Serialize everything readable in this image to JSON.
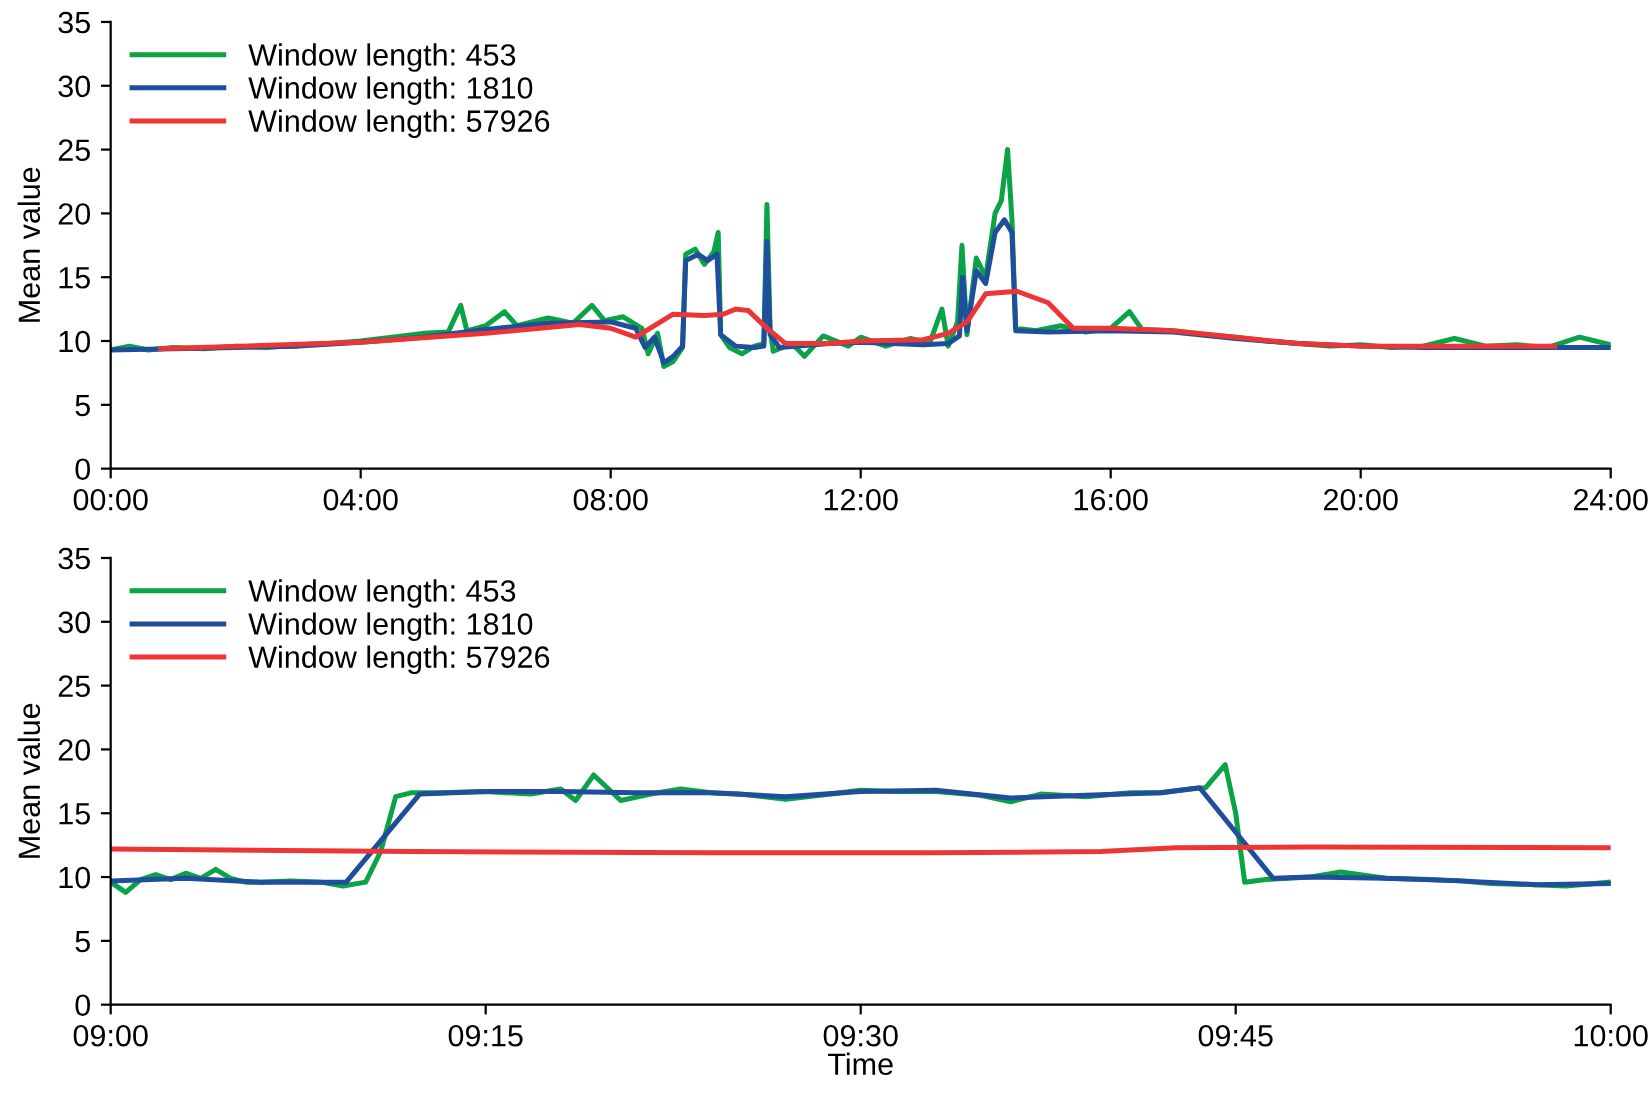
{
  "chart_data": [
    {
      "type": "line",
      "ylabel": "Mean value",
      "xlim": [
        0,
        24
      ],
      "ylim": [
        0,
        35
      ],
      "yticks": [
        0,
        5,
        10,
        15,
        20,
        25,
        30,
        35
      ],
      "xticks": [
        {
          "value": 0,
          "label": "00:00"
        },
        {
          "value": 4,
          "label": "04:00"
        },
        {
          "value": 8,
          "label": "08:00"
        },
        {
          "value": 12,
          "label": "12:00"
        },
        {
          "value": 16,
          "label": "16:00"
        },
        {
          "value": 20,
          "label": "20:00"
        },
        {
          "value": 24,
          "label": "24:00"
        }
      ],
      "legend": "top left",
      "grid": false,
      "series": [
        {
          "name": "Window length: 453",
          "color": "#0aa345",
          "x": [
            0,
            0.3,
            0.6,
            1.0,
            1.5,
            2,
            2.5,
            3,
            3.5,
            4,
            4.5,
            5,
            5.4,
            5.6,
            5.7,
            6,
            6.3,
            6.5,
            7,
            7.4,
            7.7,
            7.9,
            8.2,
            8.5,
            8.6,
            8.75,
            8.85,
            9.0,
            9.15,
            9.2,
            9.35,
            9.5,
            9.65,
            9.72,
            9.76,
            9.9,
            10.1,
            10.3,
            10.45,
            10.5,
            10.55,
            10.6,
            10.9,
            11.1,
            11.4,
            11.8,
            12,
            12.4,
            12.8,
            13.1,
            13.3,
            13.4,
            13.55,
            13.62,
            13.7,
            13.85,
            14.0,
            14.15,
            14.25,
            14.35,
            14.42,
            14.48,
            14.8,
            15.2,
            15.6,
            16,
            16.3,
            16.5,
            17,
            17.5,
            18,
            18.5,
            19,
            19.5,
            20,
            20.5,
            21,
            21.5,
            22,
            22.5,
            23,
            23.5,
            24
          ],
          "values": [
            9.3,
            9.6,
            9.3,
            9.5,
            9.4,
            9.6,
            9.5,
            9.7,
            9.8,
            10,
            10.3,
            10.6,
            10.7,
            12.8,
            10.8,
            11.2,
            12.3,
            11.2,
            11.8,
            11.4,
            12.8,
            11.6,
            11.9,
            11.0,
            9.0,
            10.6,
            8.0,
            8.4,
            9.5,
            16.8,
            17.2,
            16.0,
            17.0,
            18.5,
            10.5,
            9.5,
            9.0,
            9.6,
            9.8,
            20.7,
            11,
            9.2,
            9.8,
            8.8,
            10.4,
            9.6,
            10.3,
            9.6,
            10.2,
            9.8,
            12.5,
            9.6,
            11.5,
            17.5,
            10.5,
            16.5,
            15.0,
            20.0,
            21.0,
            25.0,
            19.5,
            11.0,
            10.8,
            11.2,
            10.7,
            11.0,
            12.3,
            10.9,
            10.8,
            10.5,
            10.3,
            10.0,
            9.8,
            9.6,
            9.7,
            9.5,
            9.6,
            10.2,
            9.6,
            9.7,
            9.5,
            10.3,
            9.7
          ]
        },
        {
          "name": "Window length: 1810",
          "color": "#1f4e9c",
          "x": [
            0,
            1,
            2,
            3,
            4,
            5,
            6,
            7,
            8,
            8.4,
            8.55,
            8.7,
            8.85,
            9.0,
            9.15,
            9.2,
            9.4,
            9.55,
            9.7,
            9.76,
            10.0,
            10.3,
            10.45,
            10.5,
            10.55,
            10.7,
            11,
            11.5,
            12,
            12.5,
            13,
            13.4,
            13.58,
            13.63,
            13.7,
            13.85,
            14.0,
            14.15,
            14.3,
            14.42,
            14.48,
            15,
            16,
            17,
            18,
            19,
            20,
            21,
            22,
            23,
            24
          ],
          "values": [
            9.3,
            9.4,
            9.5,
            9.6,
            9.9,
            10.3,
            10.9,
            11.4,
            11.5,
            11.0,
            9.5,
            10.3,
            8.3,
            8.8,
            9.6,
            16.3,
            16.8,
            16.3,
            16.8,
            10.5,
            9.6,
            9.5,
            9.6,
            17.8,
            10.5,
            9.5,
            9.6,
            9.8,
            9.9,
            9.8,
            9.7,
            9.8,
            10.4,
            15.0,
            10.8,
            15.5,
            14.5,
            18.5,
            19.5,
            18.5,
            10.8,
            10.7,
            10.8,
            10.7,
            10.2,
            9.8,
            9.6,
            9.5,
            9.5,
            9.5,
            9.5
          ]
        },
        {
          "name": "Window length: 57926",
          "color": "#ee3535",
          "x": [
            0.8,
            4,
            6,
            7.5,
            8,
            8.4,
            9,
            9.5,
            9.8,
            10,
            10.2,
            10.5,
            10.8,
            11.5,
            12,
            13,
            13.4,
            13.7,
            14,
            14.5,
            15,
            15.4,
            16,
            17,
            18,
            19,
            20,
            22,
            23.1
          ],
          "values": [
            9.4,
            9.9,
            10.6,
            11.3,
            11.0,
            10.3,
            12.1,
            12.0,
            12.1,
            12.5,
            12.4,
            11.0,
            9.8,
            9.8,
            10.0,
            10.1,
            10.6,
            11.5,
            13.7,
            13.9,
            13.0,
            11.0,
            11.0,
            10.8,
            10.3,
            9.8,
            9.6,
            9.6,
            9.6
          ]
        }
      ]
    },
    {
      "type": "line",
      "ylabel": "Mean value",
      "xlabel": "Time",
      "xlim": [
        9,
        10
      ],
      "ylim": [
        0,
        35
      ],
      "yticks": [
        0,
        5,
        10,
        15,
        20,
        25,
        30,
        35
      ],
      "xticks": [
        {
          "value": 9,
          "label": "09:00"
        },
        {
          "value": 9.25,
          "label": "09:15"
        },
        {
          "value": 9.5,
          "label": "09:30"
        },
        {
          "value": 9.75,
          "label": "09:45"
        },
        {
          "value": 10,
          "label": "10:00"
        }
      ],
      "legend": "top left",
      "grid": false,
      "series": [
        {
          "name": "Window length: 453",
          "color": "#0aa345",
          "x": [
            9.0,
            9.01,
            9.02,
            9.03,
            9.04,
            9.05,
            9.06,
            9.07,
            9.08,
            9.09,
            9.1,
            9.12,
            9.14,
            9.155,
            9.17,
            9.18,
            9.19,
            9.2,
            9.22,
            9.25,
            9.28,
            9.3,
            9.31,
            9.322,
            9.34,
            9.36,
            9.38,
            9.4,
            9.42,
            9.45,
            9.48,
            9.5,
            9.52,
            9.55,
            9.58,
            9.6,
            9.62,
            9.65,
            9.68,
            9.7,
            9.72,
            9.73,
            9.743,
            9.75,
            9.756,
            9.77,
            9.8,
            9.82,
            9.85,
            9.88,
            9.9,
            9.92,
            9.95,
            9.97,
            10.0
          ],
          "values": [
            9.6,
            8.8,
            9.8,
            10.2,
            9.8,
            10.3,
            9.9,
            10.6,
            9.9,
            9.6,
            9.6,
            9.7,
            9.6,
            9.3,
            9.6,
            12,
            16.3,
            16.6,
            16.6,
            16.7,
            16.5,
            16.9,
            16.0,
            18.0,
            16.0,
            16.5,
            16.9,
            16.6,
            16.5,
            16.1,
            16.5,
            16.8,
            16.7,
            16.7,
            16.4,
            15.9,
            16.5,
            16.3,
            16.6,
            16.6,
            16.9,
            17.0,
            18.8,
            15,
            9.6,
            9.8,
            10.0,
            10.4,
            9.9,
            9.8,
            9.7,
            9.5,
            9.4,
            9.3,
            9.6
          ]
        },
        {
          "name": "Window length: 1810",
          "color": "#1f4e9c",
          "x": [
            9.0,
            9.05,
            9.1,
            9.157,
            9.206,
            9.25,
            9.3,
            9.35,
            9.4,
            9.45,
            9.5,
            9.55,
            9.6,
            9.65,
            9.7,
            9.726,
            9.775,
            9.8,
            9.85,
            9.9,
            9.95,
            10.0
          ],
          "values": [
            9.7,
            9.9,
            9.6,
            9.6,
            16.5,
            16.7,
            16.7,
            16.6,
            16.6,
            16.3,
            16.7,
            16.8,
            16.2,
            16.4,
            16.6,
            17.0,
            9.9,
            10.0,
            9.9,
            9.7,
            9.4,
            9.5
          ]
        },
        {
          "name": "Window length: 57926",
          "color": "#ee3535",
          "x": [
            9.0,
            9.2,
            9.4,
            9.55,
            9.66,
            9.71,
            9.8,
            10.0
          ],
          "values": [
            12.2,
            12.0,
            11.9,
            11.9,
            12.0,
            12.3,
            12.35,
            12.3
          ]
        }
      ]
    }
  ]
}
